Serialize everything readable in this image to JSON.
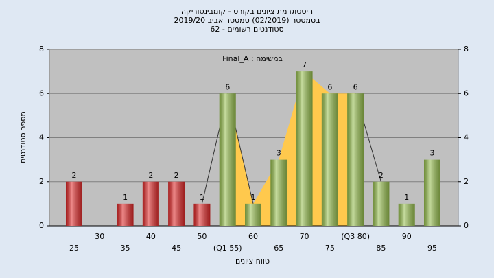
{
  "chart_data": {
    "type": "bar",
    "title": [
      "היסטוגרמת ציונים בקורס - קומבינטוריקה",
      "בסמסטר  (02/2019)  סמסטר אביב 2019/20",
      "סטודנטים רשומים - 62"
    ],
    "annotation": "Final_A : במשימה",
    "x_label": "טווח ציונים",
    "y_label": "מספר סטודנטים",
    "categories": [
      "25",
      "30",
      "35",
      "40",
      "45",
      "50",
      "(Q1 55)",
      "60",
      "65",
      "70",
      "75",
      "(Q3 80)",
      "85",
      "90",
      "95"
    ],
    "values": [
      2,
      0,
      1,
      2,
      2,
      1,
      6,
      1,
      3,
      7,
      6,
      6,
      2,
      1,
      3
    ],
    "colors": [
      "#e02a2a",
      "#e02a2a",
      "#e02a2a",
      "#e02a2a",
      "#e02a2a",
      "#e02a2a",
      "#98c050",
      "#98c050",
      "#98c050",
      "#98c050",
      "#98c050",
      "#98c050",
      "#98c050",
      "#98c050",
      "#98c050"
    ],
    "area_color": "#ffc94d",
    "ylim": [
      0,
      8
    ],
    "yticks": [
      0,
      2,
      4,
      6,
      8
    ],
    "y2lim": [
      0,
      8
    ],
    "y2ticks": [
      0,
      2,
      4,
      6,
      8
    ],
    "grid": true
  }
}
